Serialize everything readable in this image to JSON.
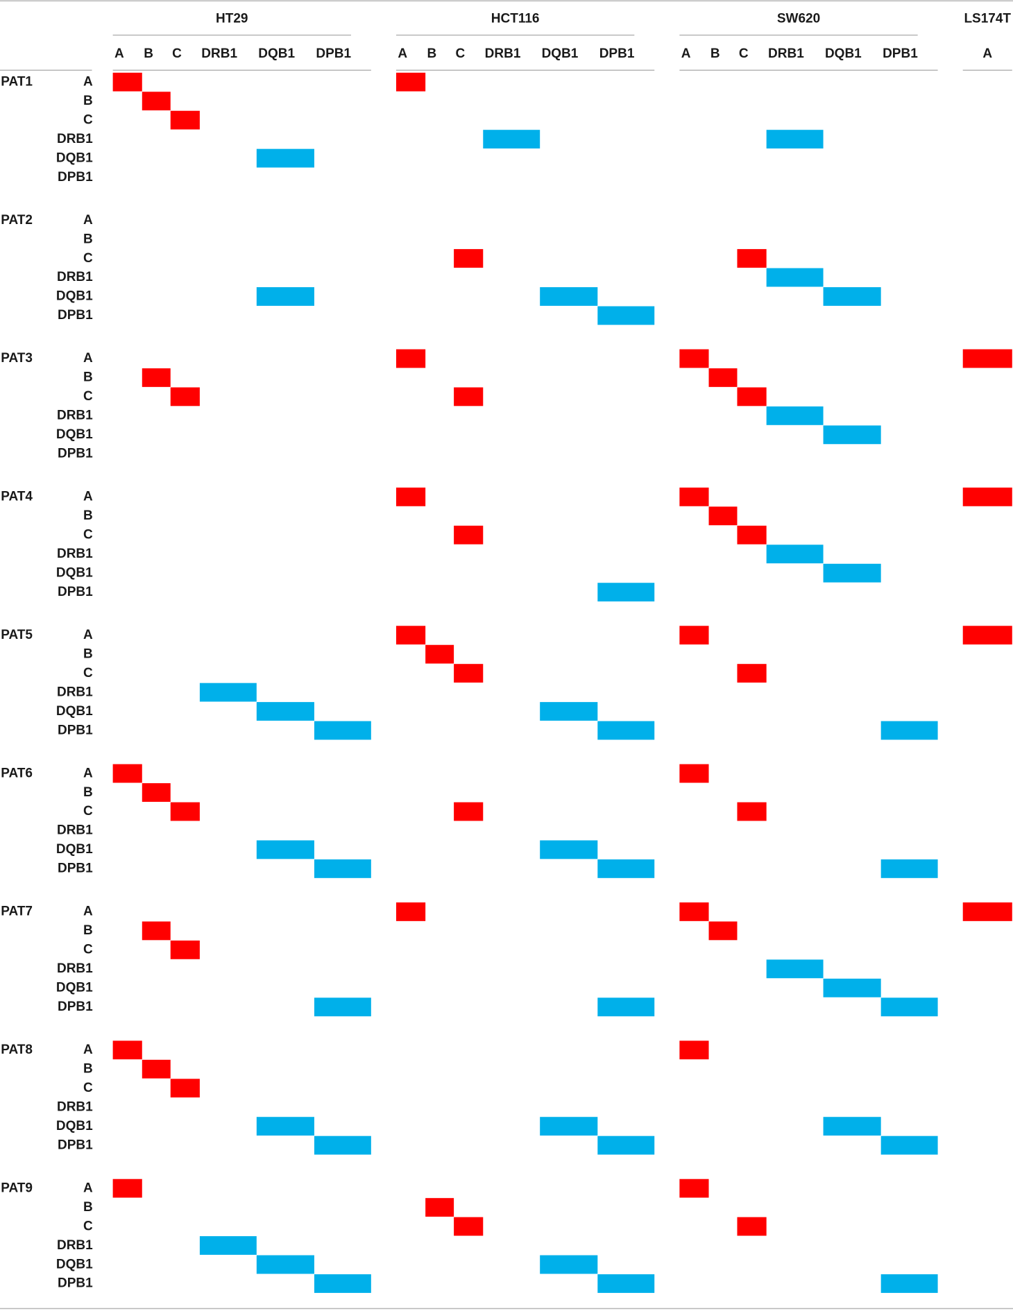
{
  "chart_data": {
    "type": "heatmap",
    "title": "",
    "groups": [
      {
        "name": "HT29",
        "columns": [
          "A",
          "B",
          "C",
          "DRB1",
          "DQB1",
          "DPB1"
        ]
      },
      {
        "name": "HCT116",
        "columns": [
          "A",
          "B",
          "C",
          "DRB1",
          "DQB1",
          "DPB1"
        ]
      },
      {
        "name": "SW620",
        "columns": [
          "A",
          "B",
          "C",
          "DRB1",
          "DQB1",
          "DPB1"
        ]
      },
      {
        "name": "LS174T",
        "columns": [
          "A"
        ]
      }
    ],
    "row_loci": [
      "A",
      "B",
      "C",
      "DRB1",
      "DQB1",
      "DPB1"
    ],
    "patients": [
      "PAT1",
      "PAT2",
      "PAT3",
      "PAT4",
      "PAT5",
      "PAT6",
      "PAT7",
      "PAT8",
      "PAT9"
    ],
    "class_colors": {
      "class_I": "#ff0000",
      "class_II": "#00b0ea"
    },
    "class_I_loci": [
      "A",
      "B",
      "C"
    ],
    "class_II_loci": [
      "DRB1",
      "DQB1",
      "DPB1"
    ],
    "cells": {
      "PAT1": {
        "HT29": [
          "A",
          "B",
          "C",
          "DQB1"
        ],
        "HCT116": [
          "A",
          "DRB1"
        ],
        "SW620": [
          "DRB1"
        ],
        "LS174T": []
      },
      "PAT2": {
        "HT29": [
          "DQB1"
        ],
        "HCT116": [
          "C",
          "DQB1",
          "DPB1"
        ],
        "SW620": [
          "C",
          "DRB1",
          "DQB1"
        ],
        "LS174T": []
      },
      "PAT3": {
        "HT29": [
          "B",
          "C"
        ],
        "HCT116": [
          "A",
          "C"
        ],
        "SW620": [
          "A",
          "B",
          "C",
          "DRB1",
          "DQB1"
        ],
        "LS174T": [
          "A"
        ]
      },
      "PAT4": {
        "HT29": [],
        "HCT116": [
          "A",
          "C",
          "DPB1"
        ],
        "SW620": [
          "A",
          "B",
          "C",
          "DRB1",
          "DQB1"
        ],
        "LS174T": [
          "A"
        ]
      },
      "PAT5": {
        "HT29": [
          "DRB1",
          "DQB1",
          "DPB1"
        ],
        "HCT116": [
          "A",
          "B",
          "C",
          "DQB1",
          "DPB1"
        ],
        "SW620": [
          "A",
          "C",
          "DPB1"
        ],
        "LS174T": [
          "A"
        ]
      },
      "PAT6": {
        "HT29": [
          "A",
          "B",
          "C",
          "DQB1",
          "DPB1"
        ],
        "HCT116": [
          "C",
          "DQB1",
          "DPB1"
        ],
        "SW620": [
          "A",
          "C",
          "DPB1"
        ],
        "LS174T": []
      },
      "PAT7": {
        "HT29": [
          "B",
          "C",
          "DPB1"
        ],
        "HCT116": [
          "A",
          "DPB1"
        ],
        "SW620": [
          "A",
          "B",
          "DRB1",
          "DQB1",
          "DPB1"
        ],
        "LS174T": [
          "A"
        ]
      },
      "PAT8": {
        "HT29": [
          "A",
          "B",
          "C",
          "DQB1",
          "DPB1"
        ],
        "HCT116": [
          "DQB1",
          "DPB1"
        ],
        "SW620": [
          "A",
          "DQB1",
          "DPB1"
        ],
        "LS174T": []
      },
      "PAT9": {
        "HT29": [
          "A",
          "DRB1",
          "DQB1",
          "DPB1"
        ],
        "HCT116": [
          "B",
          "C",
          "DQB1",
          "DPB1"
        ],
        "SW620": [
          "A",
          "C",
          "DPB1"
        ],
        "LS174T": []
      }
    }
  }
}
